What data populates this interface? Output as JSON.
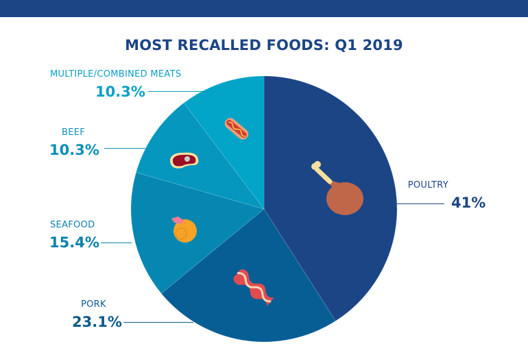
{
  "chart_data": {
    "type": "pie",
    "title": "MOST RECALLED FOODS: Q1 2019",
    "slices": [
      {
        "label": "POULTRY",
        "value": 41,
        "display": "41%",
        "color": "#1c4586",
        "label_color": "#1c4586",
        "icon": "chicken-leg-icon"
      },
      {
        "label": "PORK",
        "value": 23.1,
        "display": "23.1%",
        "color": "#065e94",
        "label_color": "#0b5a8e",
        "icon": "bacon-icon"
      },
      {
        "label": "SEAFOOD",
        "value": 15.4,
        "display": "15.4%",
        "color": "#0587b2",
        "label_color": "#0b80ad",
        "icon": "shrimp-icon"
      },
      {
        "label": "BEEF",
        "value": 10.3,
        "display": "10.3%",
        "color": "#0597bd",
        "label_color": "#0c8fb8",
        "icon": "steak-icon"
      },
      {
        "label": "MULTIPLE/COMBINED MEATS",
        "value": 10.3,
        "display": "10.3%",
        "color": "#02a4c8",
        "label_color": "#0aa0c6",
        "icon": "hotdog-icon"
      }
    ]
  },
  "colors": {
    "header_bar": "#1b4585"
  }
}
